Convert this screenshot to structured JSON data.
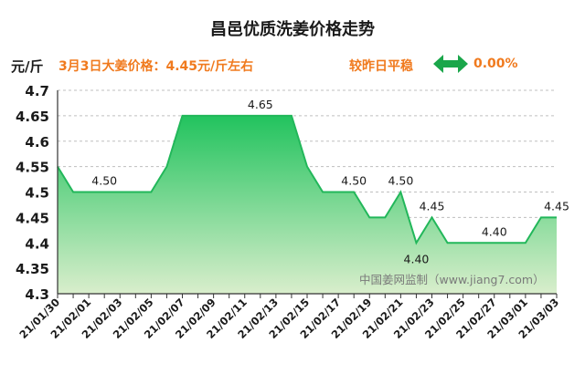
{
  "chart_data": {
    "type": "area",
    "title": "昌邑优质洗姜价格走势",
    "ylabel": "元/斤",
    "ylim": [
      4.3,
      4.7
    ],
    "yticks": [
      "4.3",
      "4.35",
      "4.4",
      "4.45",
      "4.5",
      "4.55",
      "4.6",
      "4.65",
      "4.7"
    ],
    "x_labels": [
      "21/01/30",
      "21/02/01",
      "21/02/03",
      "21/02/05",
      "21/02/07",
      "21/02/09",
      "21/02/11",
      "21/02/13",
      "21/02/15",
      "21/02/17",
      "21/02/19",
      "21/02/21",
      "21/02/23",
      "21/02/25",
      "21/02/27",
      "21/03/01",
      "21/03/03"
    ],
    "x": [
      "21/01/30",
      "21/01/31",
      "21/02/01",
      "21/02/02",
      "21/02/03",
      "21/02/04",
      "21/02/05",
      "21/02/06",
      "21/02/07",
      "21/02/08",
      "21/02/09",
      "21/02/10",
      "21/02/11",
      "21/02/12",
      "21/02/13",
      "21/02/14",
      "21/02/15",
      "21/02/16",
      "21/02/17",
      "21/02/18",
      "21/02/19",
      "21/02/20",
      "21/02/21",
      "21/02/22",
      "21/02/23",
      "21/02/24",
      "21/02/25",
      "21/02/26",
      "21/02/27",
      "21/02/28",
      "21/03/01",
      "21/03/02",
      "21/03/03"
    ],
    "values": [
      4.55,
      4.5,
      4.5,
      4.5,
      4.5,
      4.5,
      4.5,
      4.55,
      4.65,
      4.65,
      4.65,
      4.65,
      4.65,
      4.65,
      4.65,
      4.65,
      4.55,
      4.5,
      4.5,
      4.5,
      4.45,
      4.45,
      4.5,
      4.4,
      4.45,
      4.4,
      4.4,
      4.4,
      4.4,
      4.4,
      4.4,
      4.45,
      4.45
    ],
    "annotations": [
      {
        "x": "21/02/02",
        "text": "4.50",
        "pos": "above"
      },
      {
        "x": "21/02/12",
        "text": "4.65",
        "pos": "above"
      },
      {
        "x": "21/02/18",
        "text": "4.50",
        "pos": "above"
      },
      {
        "x": "21/02/21",
        "text": "4.50",
        "pos": "above"
      },
      {
        "x": "21/02/22",
        "text": "4.40",
        "pos": "below"
      },
      {
        "x": "21/02/23",
        "text": "4.45",
        "pos": "above"
      },
      {
        "x": "21/02/27",
        "text": "4.40",
        "pos": "above"
      },
      {
        "x": "21/03/03",
        "text": "4.45",
        "pos": "above"
      }
    ],
    "grid": true,
    "line_color": "#22b75a",
    "watermark": "中国姜网监制（www.jiang7.com）"
  },
  "header": {
    "unit": "元/斤",
    "price_note": "3月3日大姜价格：4.45元/斤左右",
    "compare_note": "较昨日平稳",
    "change": "0.00%",
    "arrow_icon": "double-arrow-icon"
  },
  "colors": {
    "accent": "#f07a1e",
    "line": "#22b75a",
    "arrow": "#1aa64a"
  }
}
